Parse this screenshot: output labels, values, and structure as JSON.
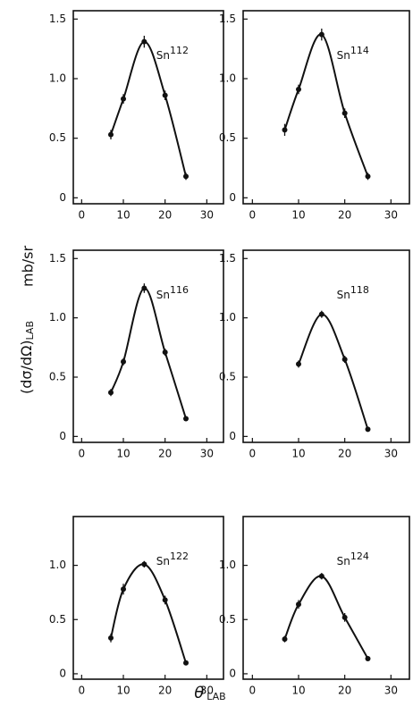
{
  "figure": {
    "y_label": "(dσ/dΩ)",
    "y_label_sub": "LAB",
    "y_unit": "mb/sr",
    "x_label": "θ",
    "x_label_sub": "LAB"
  },
  "chart_data": [
    {
      "type": "scatter",
      "title": {
        "element": "Sn",
        "mass_number": "112"
      },
      "x": [
        7,
        10,
        15,
        20,
        25
      ],
      "values": [
        0.53,
        0.83,
        1.31,
        0.86,
        0.18
      ],
      "errors": [
        0.04,
        0.04,
        0.05,
        0.04,
        0.03
      ],
      "xlim": [
        -2,
        34
      ],
      "ylim": [
        -0.05,
        1.57
      ],
      "xticks": [
        0,
        10,
        20,
        30
      ],
      "yticks": [
        0,
        0.5,
        {
          "value": 1,
          "label": "1.0"
        },
        1.5
      ],
      "fit_curve": true
    },
    {
      "type": "scatter",
      "title": {
        "element": "Sn",
        "mass_number": "114"
      },
      "x": [
        7,
        10,
        15,
        20,
        25
      ],
      "values": [
        0.57,
        0.91,
        1.37,
        0.71,
        0.18
      ],
      "errors": [
        0.05,
        0.04,
        0.05,
        0.04,
        0.03
      ],
      "xlim": [
        -2,
        34
      ],
      "ylim": [
        -0.05,
        1.57
      ],
      "xticks": [
        0,
        10,
        20,
        30
      ],
      "yticks": [
        0,
        0.5,
        {
          "value": 1,
          "label": "1.0"
        },
        1.5
      ],
      "fit_curve": true
    },
    {
      "type": "scatter",
      "title": {
        "element": "Sn",
        "mass_number": "116"
      },
      "x": [
        7,
        10,
        15,
        20,
        25
      ],
      "values": [
        0.37,
        0.63,
        1.25,
        0.71,
        0.15
      ],
      "errors": [
        0.03,
        0.03,
        0.04,
        0.03,
        0.02
      ],
      "xlim": [
        -2,
        34
      ],
      "ylim": [
        -0.05,
        1.57
      ],
      "xticks": [
        0,
        10,
        20,
        30
      ],
      "yticks": [
        0,
        0.5,
        {
          "value": 1,
          "label": "1.0"
        },
        1.5
      ],
      "fit_curve": true
    },
    {
      "type": "scatter",
      "title": {
        "element": "Sn",
        "mass_number": "118"
      },
      "x": [
        10,
        15,
        20,
        25
      ],
      "values": [
        0.61,
        1.03,
        0.65,
        0.06
      ],
      "errors": [
        0.03,
        0.03,
        0.03,
        0.02
      ],
      "xlim": [
        -2,
        34
      ],
      "ylim": [
        -0.05,
        1.57
      ],
      "xticks": [
        0,
        10,
        20,
        30
      ],
      "yticks": [
        0,
        0.5,
        {
          "value": 1,
          "label": "1.0"
        },
        1.5
      ],
      "fit_curve": true
    },
    {
      "type": "scatter",
      "title": {
        "element": "Sn",
        "mass_number": "122"
      },
      "x": [
        7,
        10,
        15,
        20,
        25
      ],
      "values": [
        0.33,
        0.78,
        1.01,
        0.68,
        0.1
      ],
      "errors": [
        0.04,
        0.05,
        0.03,
        0.04,
        0.02
      ],
      "xlim": [
        -2,
        34
      ],
      "ylim": [
        -0.05,
        1.45
      ],
      "xticks": [
        0,
        10,
        20,
        30
      ],
      "yticks": [
        0,
        0.5,
        {
          "value": 1,
          "label": "1.0"
        }
      ],
      "fit_curve": true
    },
    {
      "type": "scatter",
      "title": {
        "element": "Sn",
        "mass_number": "124"
      },
      "x": [
        7,
        10,
        15,
        20,
        25
      ],
      "values": [
        0.32,
        0.64,
        0.9,
        0.52,
        0.14
      ],
      "errors": [
        0.03,
        0.04,
        0.03,
        0.04,
        0.02
      ],
      "xlim": [
        -2,
        34
      ],
      "ylim": [
        -0.05,
        1.45
      ],
      "xticks": [
        0,
        10,
        20,
        30
      ],
      "yticks": [
        0,
        0.5,
        {
          "value": 1,
          "label": "1.0"
        }
      ],
      "fit_curve": true
    }
  ]
}
